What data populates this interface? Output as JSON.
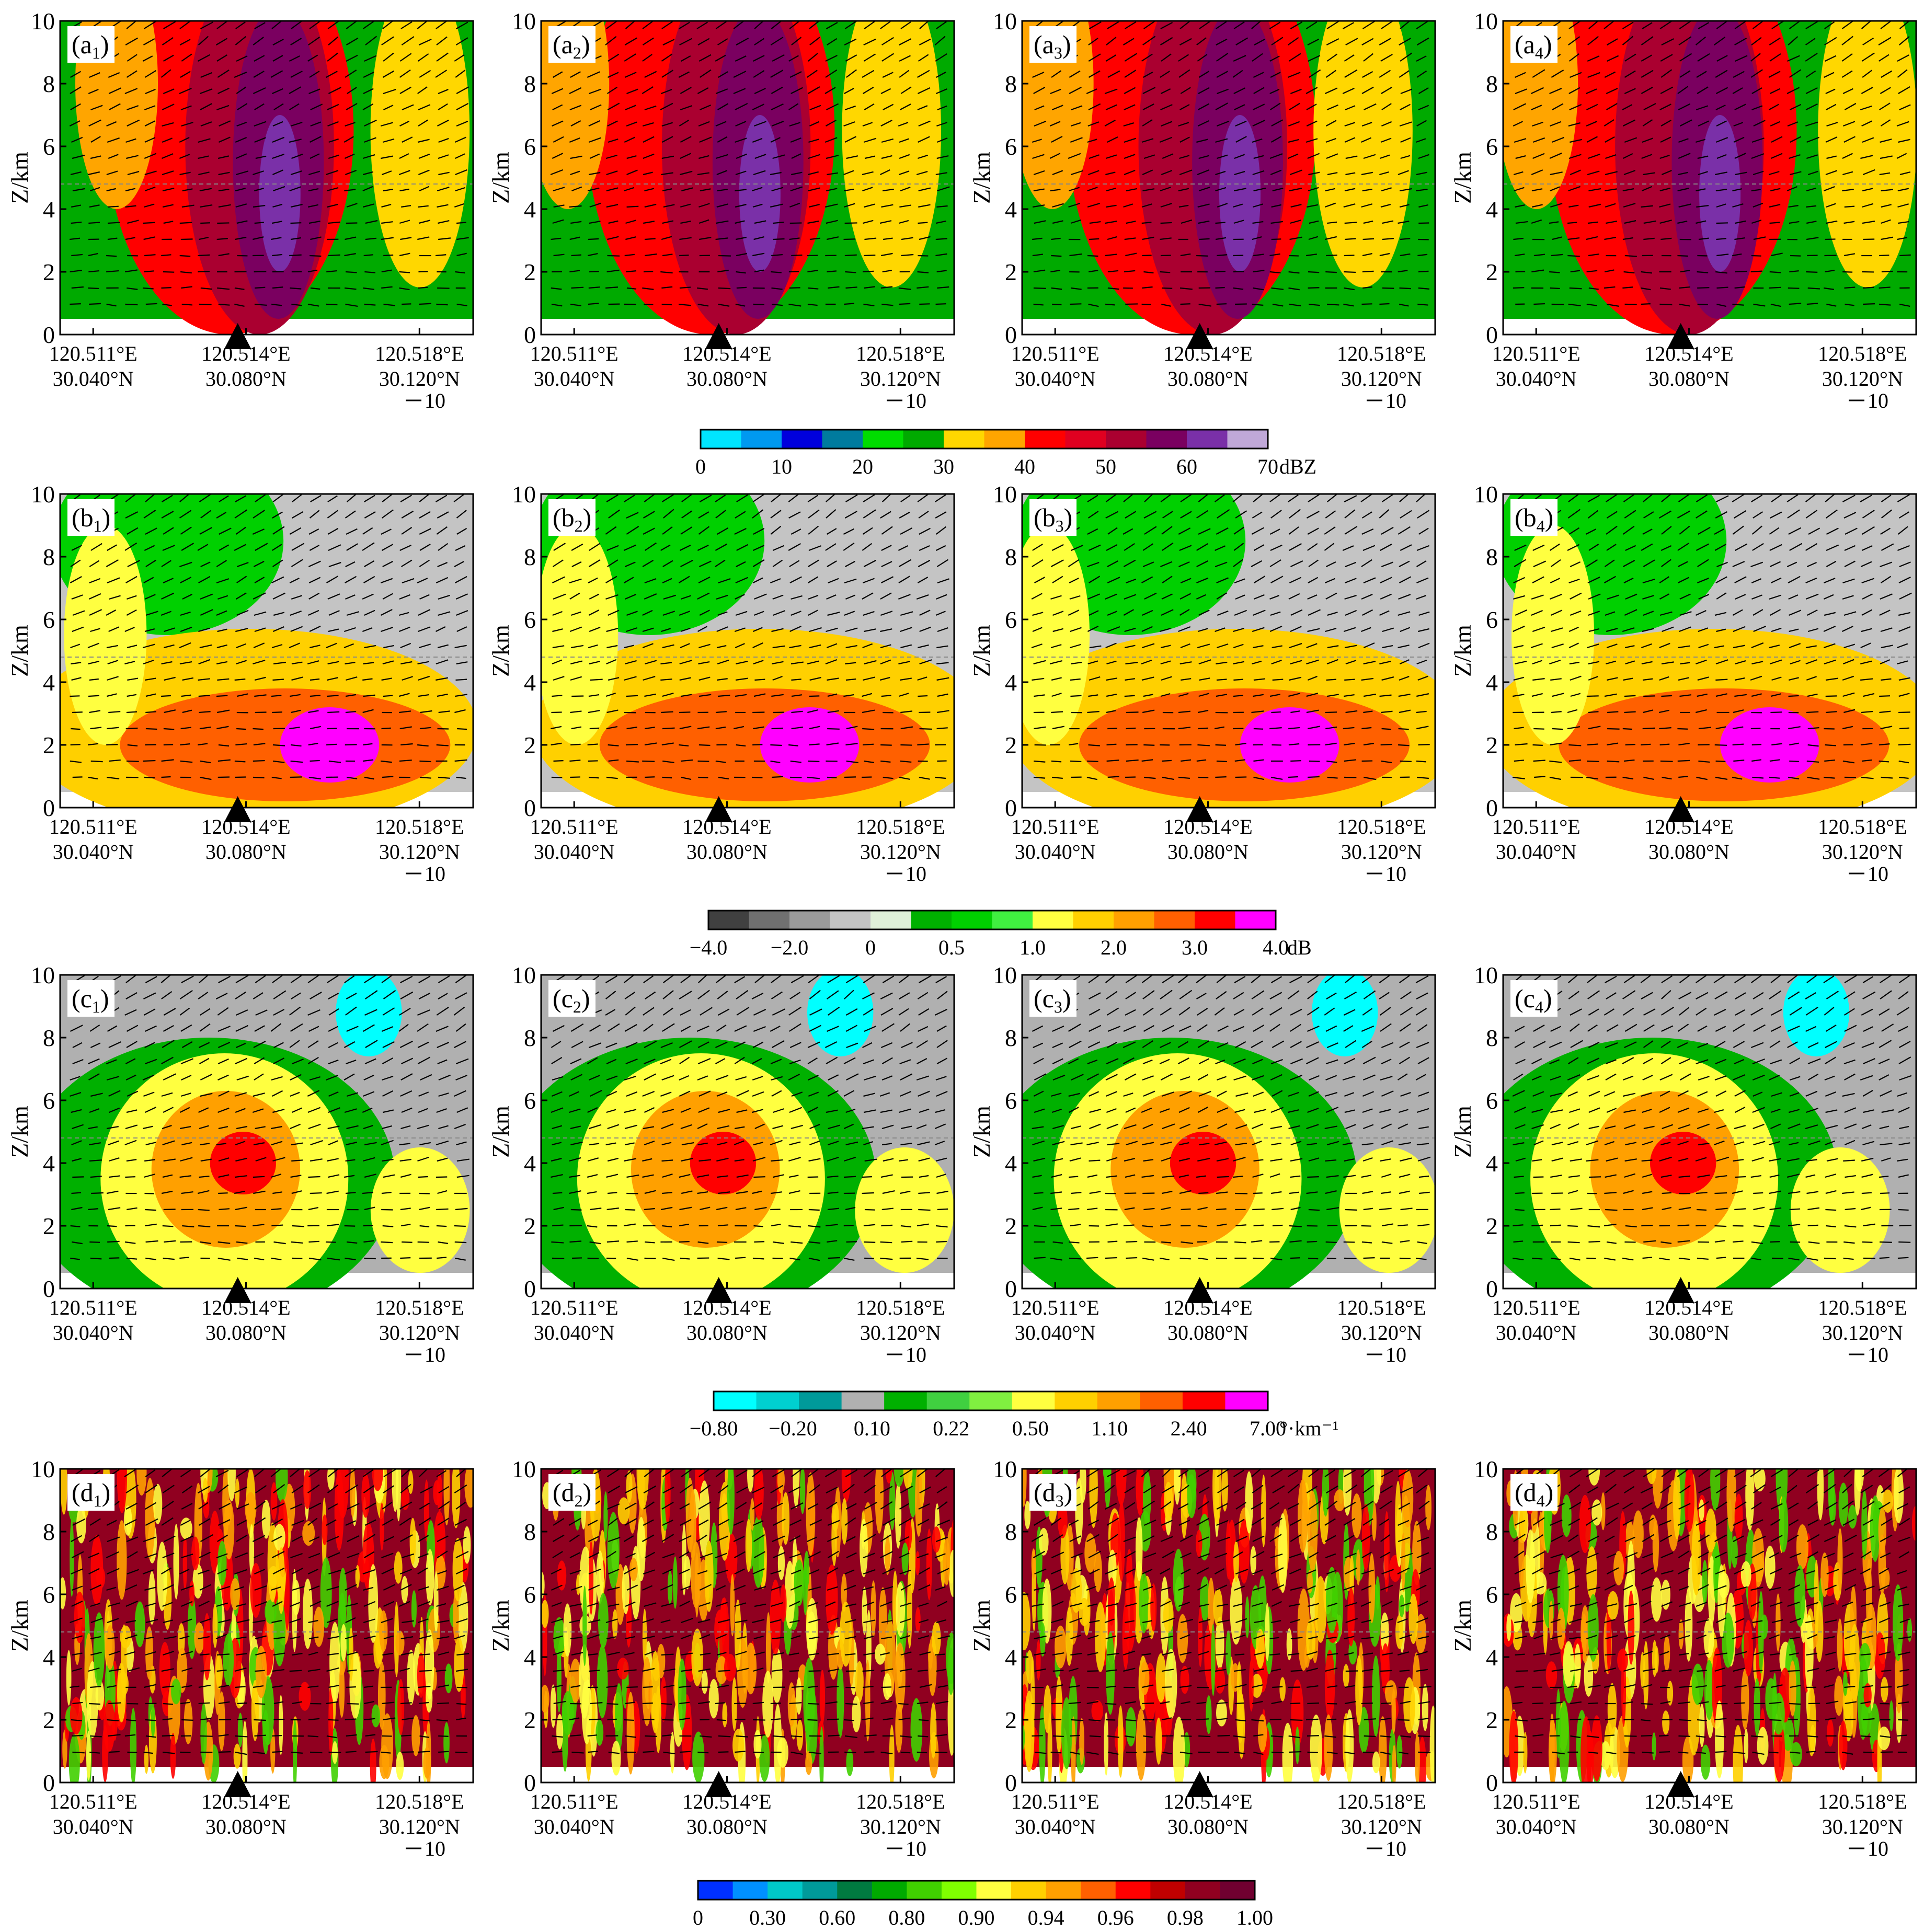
{
  "chart_data": {
    "type": "heatmap",
    "description_rows": [
      "a",
      "b",
      "c",
      "d"
    ],
    "columns": 4,
    "y_label": "Z/km",
    "y_ticks": [
      "0",
      "2",
      "4",
      "6",
      "8",
      "10"
    ],
    "y_range": [
      0,
      10
    ],
    "x_ticks_top": [
      "120.511°E",
      "120.514°E",
      "120.518°E"
    ],
    "x_ticks_bottom": [
      "30.040°N",
      "30.080°N",
      "30.120°N"
    ],
    "vector_ref_label": "10",
    "panels": [
      {
        "row": "a",
        "col": 1,
        "label": "a",
        "sub": "1"
      },
      {
        "row": "a",
        "col": 2,
        "label": "a",
        "sub": "2"
      },
      {
        "row": "a",
        "col": 3,
        "label": "a",
        "sub": "3"
      },
      {
        "row": "a",
        "col": 4,
        "label": "a",
        "sub": "4"
      },
      {
        "row": "b",
        "col": 1,
        "label": "b",
        "sub": "1"
      },
      {
        "row": "b",
        "col": 2,
        "label": "b",
        "sub": "2"
      },
      {
        "row": "b",
        "col": 3,
        "label": "b",
        "sub": "3"
      },
      {
        "row": "b",
        "col": 4,
        "label": "b",
        "sub": "4"
      },
      {
        "row": "c",
        "col": 1,
        "label": "c",
        "sub": "1"
      },
      {
        "row": "c",
        "col": 2,
        "label": "c",
        "sub": "2"
      },
      {
        "row": "c",
        "col": 3,
        "label": "c",
        "sub": "3"
      },
      {
        "row": "c",
        "col": 4,
        "label": "c",
        "sub": "4"
      },
      {
        "row": "d",
        "col": 1,
        "label": "d",
        "sub": "1"
      },
      {
        "row": "d",
        "col": 2,
        "label": "d",
        "sub": "2"
      },
      {
        "row": "d",
        "col": 3,
        "label": "d",
        "sub": "3"
      },
      {
        "row": "d",
        "col": 4,
        "label": "d",
        "sub": "4"
      }
    ],
    "colorbars": [
      {
        "row": "a",
        "unit": "dBZ",
        "tick_labels": [
          "0",
          "10",
          "20",
          "30",
          "40",
          "50",
          "60",
          "70"
        ],
        "colors": [
          "#00e5ff",
          "#0099f0",
          "#0000dd",
          "#007b9e",
          "#00dd00",
          "#00aa00",
          "#ffd700",
          "#ffa500",
          "#ff0000",
          "#e00020",
          "#aa0030",
          "#7a0060",
          "#7a30a8",
          "#c0a8d8"
        ]
      },
      {
        "row": "b",
        "unit": "dB",
        "tick_labels": [
          "−4.0",
          "−2.0",
          "0",
          "0.5",
          "1.0",
          "2.0",
          "3.0",
          "4.0"
        ],
        "colors": [
          "#404040",
          "#707070",
          "#9a9a9a",
          "#c4c4c4",
          "#dff0d8",
          "#00b000",
          "#00d000",
          "#40f040",
          "#ffff40",
          "#ffd000",
          "#ffa000",
          "#ff6000",
          "#ff0000",
          "#ff00ff"
        ]
      },
      {
        "row": "c",
        "unit": "°·km⁻¹",
        "tick_labels": [
          "−0.80",
          "−0.20",
          "0.10",
          "0.22",
          "0.50",
          "1.10",
          "2.40",
          "7.00"
        ],
        "colors": [
          "#00ffff",
          "#00d0d0",
          "#009a9a",
          "#b0b0b0",
          "#00b000",
          "#40d040",
          "#80f040",
          "#ffff40",
          "#ffd000",
          "#ffa000",
          "#ff6000",
          "#ff0000",
          "#ff00ff"
        ]
      },
      {
        "row": "d",
        "unit": "",
        "tick_labels": [
          "0",
          "0.30",
          "0.60",
          "0.80",
          "0.90",
          "0.94",
          "0.96",
          "0.98",
          "1.00"
        ],
        "colors": [
          "#0030ff",
          "#0090ff",
          "#00c8c8",
          "#009a9a",
          "#007a40",
          "#00aa00",
          "#40d000",
          "#80ff00",
          "#ffff40",
          "#ffd000",
          "#ffa000",
          "#ff6000",
          "#ff0000",
          "#c00000",
          "#900020",
          "#700030"
        ]
      }
    ]
  }
}
